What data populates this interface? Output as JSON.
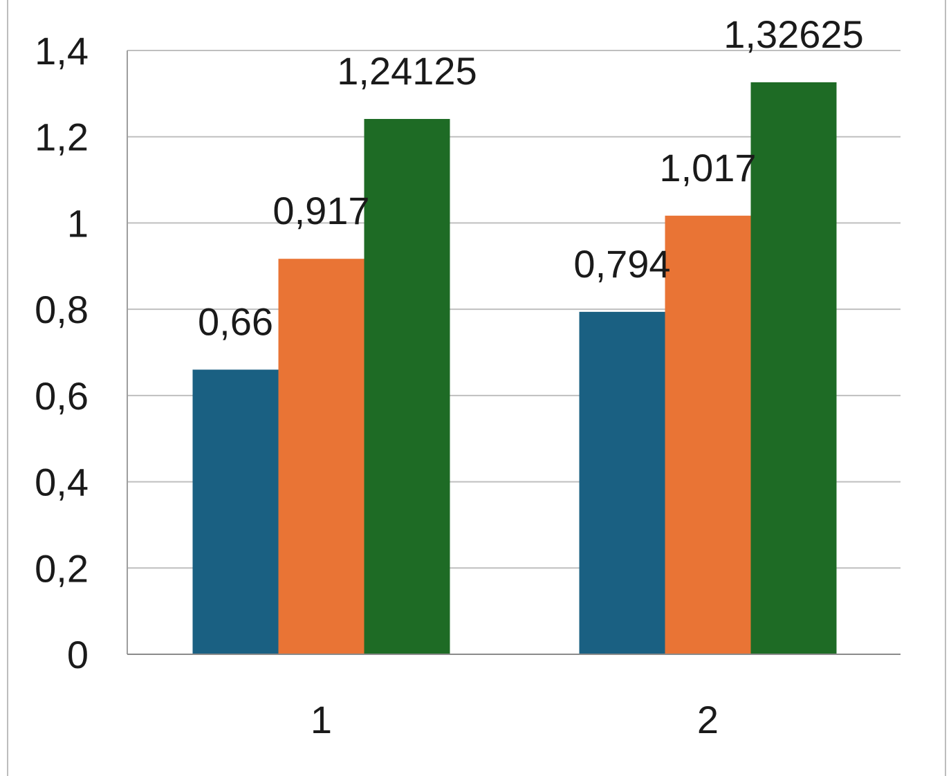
{
  "chart_data": {
    "type": "bar",
    "categories": [
      "1",
      "2"
    ],
    "series": [
      {
        "values": [
          0.66,
          0.794
        ],
        "labels": [
          "0,66",
          "0,794"
        ],
        "color": "#1a6082"
      },
      {
        "values": [
          0.917,
          1.017
        ],
        "labels": [
          "0,917",
          "1,017"
        ],
        "color": "#e97435"
      },
      {
        "values": [
          1.24125,
          1.32625
        ],
        "labels": [
          "1,24125",
          "1,32625"
        ],
        "color": "#1e6b25"
      }
    ],
    "y_ticks": [
      {
        "value": 0,
        "label": "0"
      },
      {
        "value": 0.2,
        "label": "0,2"
      },
      {
        "value": 0.4,
        "label": "0,4"
      },
      {
        "value": 0.6,
        "label": "0,6"
      },
      {
        "value": 0.8,
        "label": "0,8"
      },
      {
        "value": 1,
        "label": "1"
      },
      {
        "value": 1.2,
        "label": "1,2"
      },
      {
        "value": 1.4,
        "label": "1,4"
      }
    ],
    "ylim": [
      0,
      1.4
    ],
    "grid": true,
    "legend": "none",
    "title": "",
    "xlabel": "",
    "ylabel": ""
  }
}
